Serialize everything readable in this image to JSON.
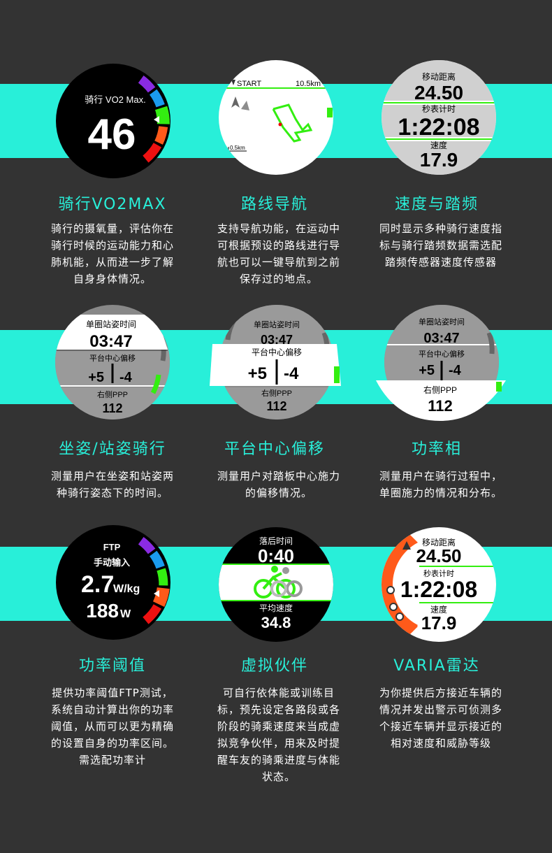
{
  "colors": {
    "band": "#28efd9",
    "background": "#333333",
    "title": "#28efd9",
    "text": "#ffffff",
    "green": "#33ee11",
    "orange": "#ff5a1a",
    "purple": "#8a2be2",
    "red": "#ee1111",
    "blue": "#1a9bef"
  },
  "features": [
    {
      "title": "骑行VO2MAX",
      "desc": "骑行的摄氧量，评估你在骑行时候的运动能力和心肺机能，从而进一步了解自身身体情况。",
      "screen": {
        "label": "骑行 VO2 Max.",
        "value": "46"
      }
    },
    {
      "title": "路线导航",
      "desc": "支持导航功能，在运动中可根据预设的路线进行导航也可以一键导航到之前保存过的地点。",
      "screen": {
        "start": "START",
        "distance": "10.5km",
        "scale": "0.5km"
      }
    },
    {
      "title": "速度与踏频",
      "desc": "同时显示多种骑行速度指标与骑行踏频数据需选配踏频传感器速度传感器",
      "screen": {
        "label1": "移动距离",
        "value1": "24.50",
        "label2": "秒表计时",
        "value2": "1:22:08",
        "label3": "速度",
        "value3": "17.9"
      }
    },
    {
      "title": "坐姿/站姿骑行",
      "desc": "测量用户在坐姿和站姿两种骑行姿态下的时间。",
      "screen": {
        "label1": "单圈站姿时间",
        "value1": "03:47",
        "label2": "平台中心偏移",
        "left": "+5",
        "right": "-4",
        "label3": "右侧PPP",
        "value3": "112"
      }
    },
    {
      "title": "平台中心偏移",
      "desc": "测量用户对踏板中心施力的偏移情况。",
      "screen": {
        "label1": "单圈站姿时间",
        "value1": "03:47",
        "label2": "平台中心偏移",
        "left": "+5",
        "right": "-4",
        "label3": "右侧PPP",
        "value3": "112"
      }
    },
    {
      "title": "功率相",
      "desc": "测量用户在骑行过程中，单圈施力的情况和分布。",
      "screen": {
        "label1": "单圈站姿时间",
        "value1": "03:47",
        "label2": "平台中心偏移",
        "left": "+5",
        "right": "-4",
        "label3": "右侧PPP",
        "value3": "112"
      }
    },
    {
      "title": "功率阈值",
      "desc": "提供功率阈值FTP测试，系统自动计算出你的功率阈值，从而可以更为精确的设置自身的功率区间。需选配功率计",
      "screen": {
        "label1": "FTP",
        "label2": "手动输入",
        "value": "2.7",
        "unit": "W/kg",
        "watts": "188",
        "watts_unit": "W"
      }
    },
    {
      "title": "虚拟伙伴",
      "desc": "可自行依体能或训练目标，预先设定各路段或各阶段的骑乘速度来当成虚拟竞争伙伴，用来及时提醒车友的骑乘进度与体能状态。",
      "screen": {
        "label1": "落后时间",
        "value1": "0:40",
        "label2": "平均速度",
        "value2": "34.8"
      }
    },
    {
      "title": "VARIA雷达",
      "desc": "为你提供后方接近车辆的情况并发出警示可侦测多个接近车辆并显示接近的相对速度和威胁等级",
      "screen": {
        "label1": "移动距离",
        "value1": "24.50",
        "label2": "秒表计时",
        "value2": "1:22:08",
        "label3": "速度",
        "value3": "17.9"
      }
    }
  ]
}
